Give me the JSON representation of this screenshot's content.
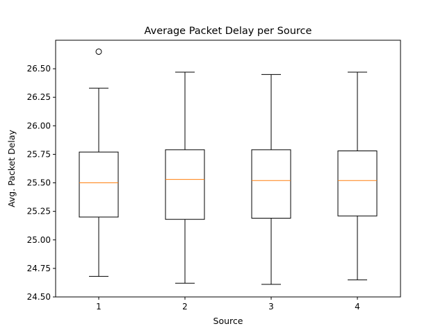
{
  "chart_data": {
    "type": "boxplot",
    "title": "Average Packet Delay per Source",
    "xlabel": "Source",
    "ylabel": "Avg. Packet Delay",
    "categories": [
      "1",
      "2",
      "3",
      "4"
    ],
    "ylim": [
      24.5,
      26.75
    ],
    "yticks": [
      24.5,
      24.75,
      25.0,
      25.25,
      25.5,
      25.75,
      26.0,
      26.25,
      26.5
    ],
    "ytick_labels": [
      "24.50",
      "24.75",
      "25.00",
      "25.25",
      "25.50",
      "25.75",
      "26.00",
      "26.25",
      "26.50"
    ],
    "grid": false,
    "boxes": [
      {
        "category": "1",
        "whisker_low": 24.68,
        "q1": 25.2,
        "median": 25.5,
        "q3": 25.77,
        "whisker_high": 26.33,
        "outliers": [
          26.65
        ]
      },
      {
        "category": "2",
        "whisker_low": 24.62,
        "q1": 25.18,
        "median": 25.53,
        "q3": 25.79,
        "whisker_high": 26.47,
        "outliers": []
      },
      {
        "category": "3",
        "whisker_low": 24.61,
        "q1": 25.19,
        "median": 25.52,
        "q3": 25.79,
        "whisker_high": 26.45,
        "outliers": []
      },
      {
        "category": "4",
        "whisker_low": 24.65,
        "q1": 25.21,
        "median": 25.52,
        "q3": 25.78,
        "whisker_high": 26.47,
        "outliers": []
      }
    ],
    "colors": {
      "box": "#000000",
      "median": "#ff7f0e",
      "background": "#ffffff"
    }
  }
}
